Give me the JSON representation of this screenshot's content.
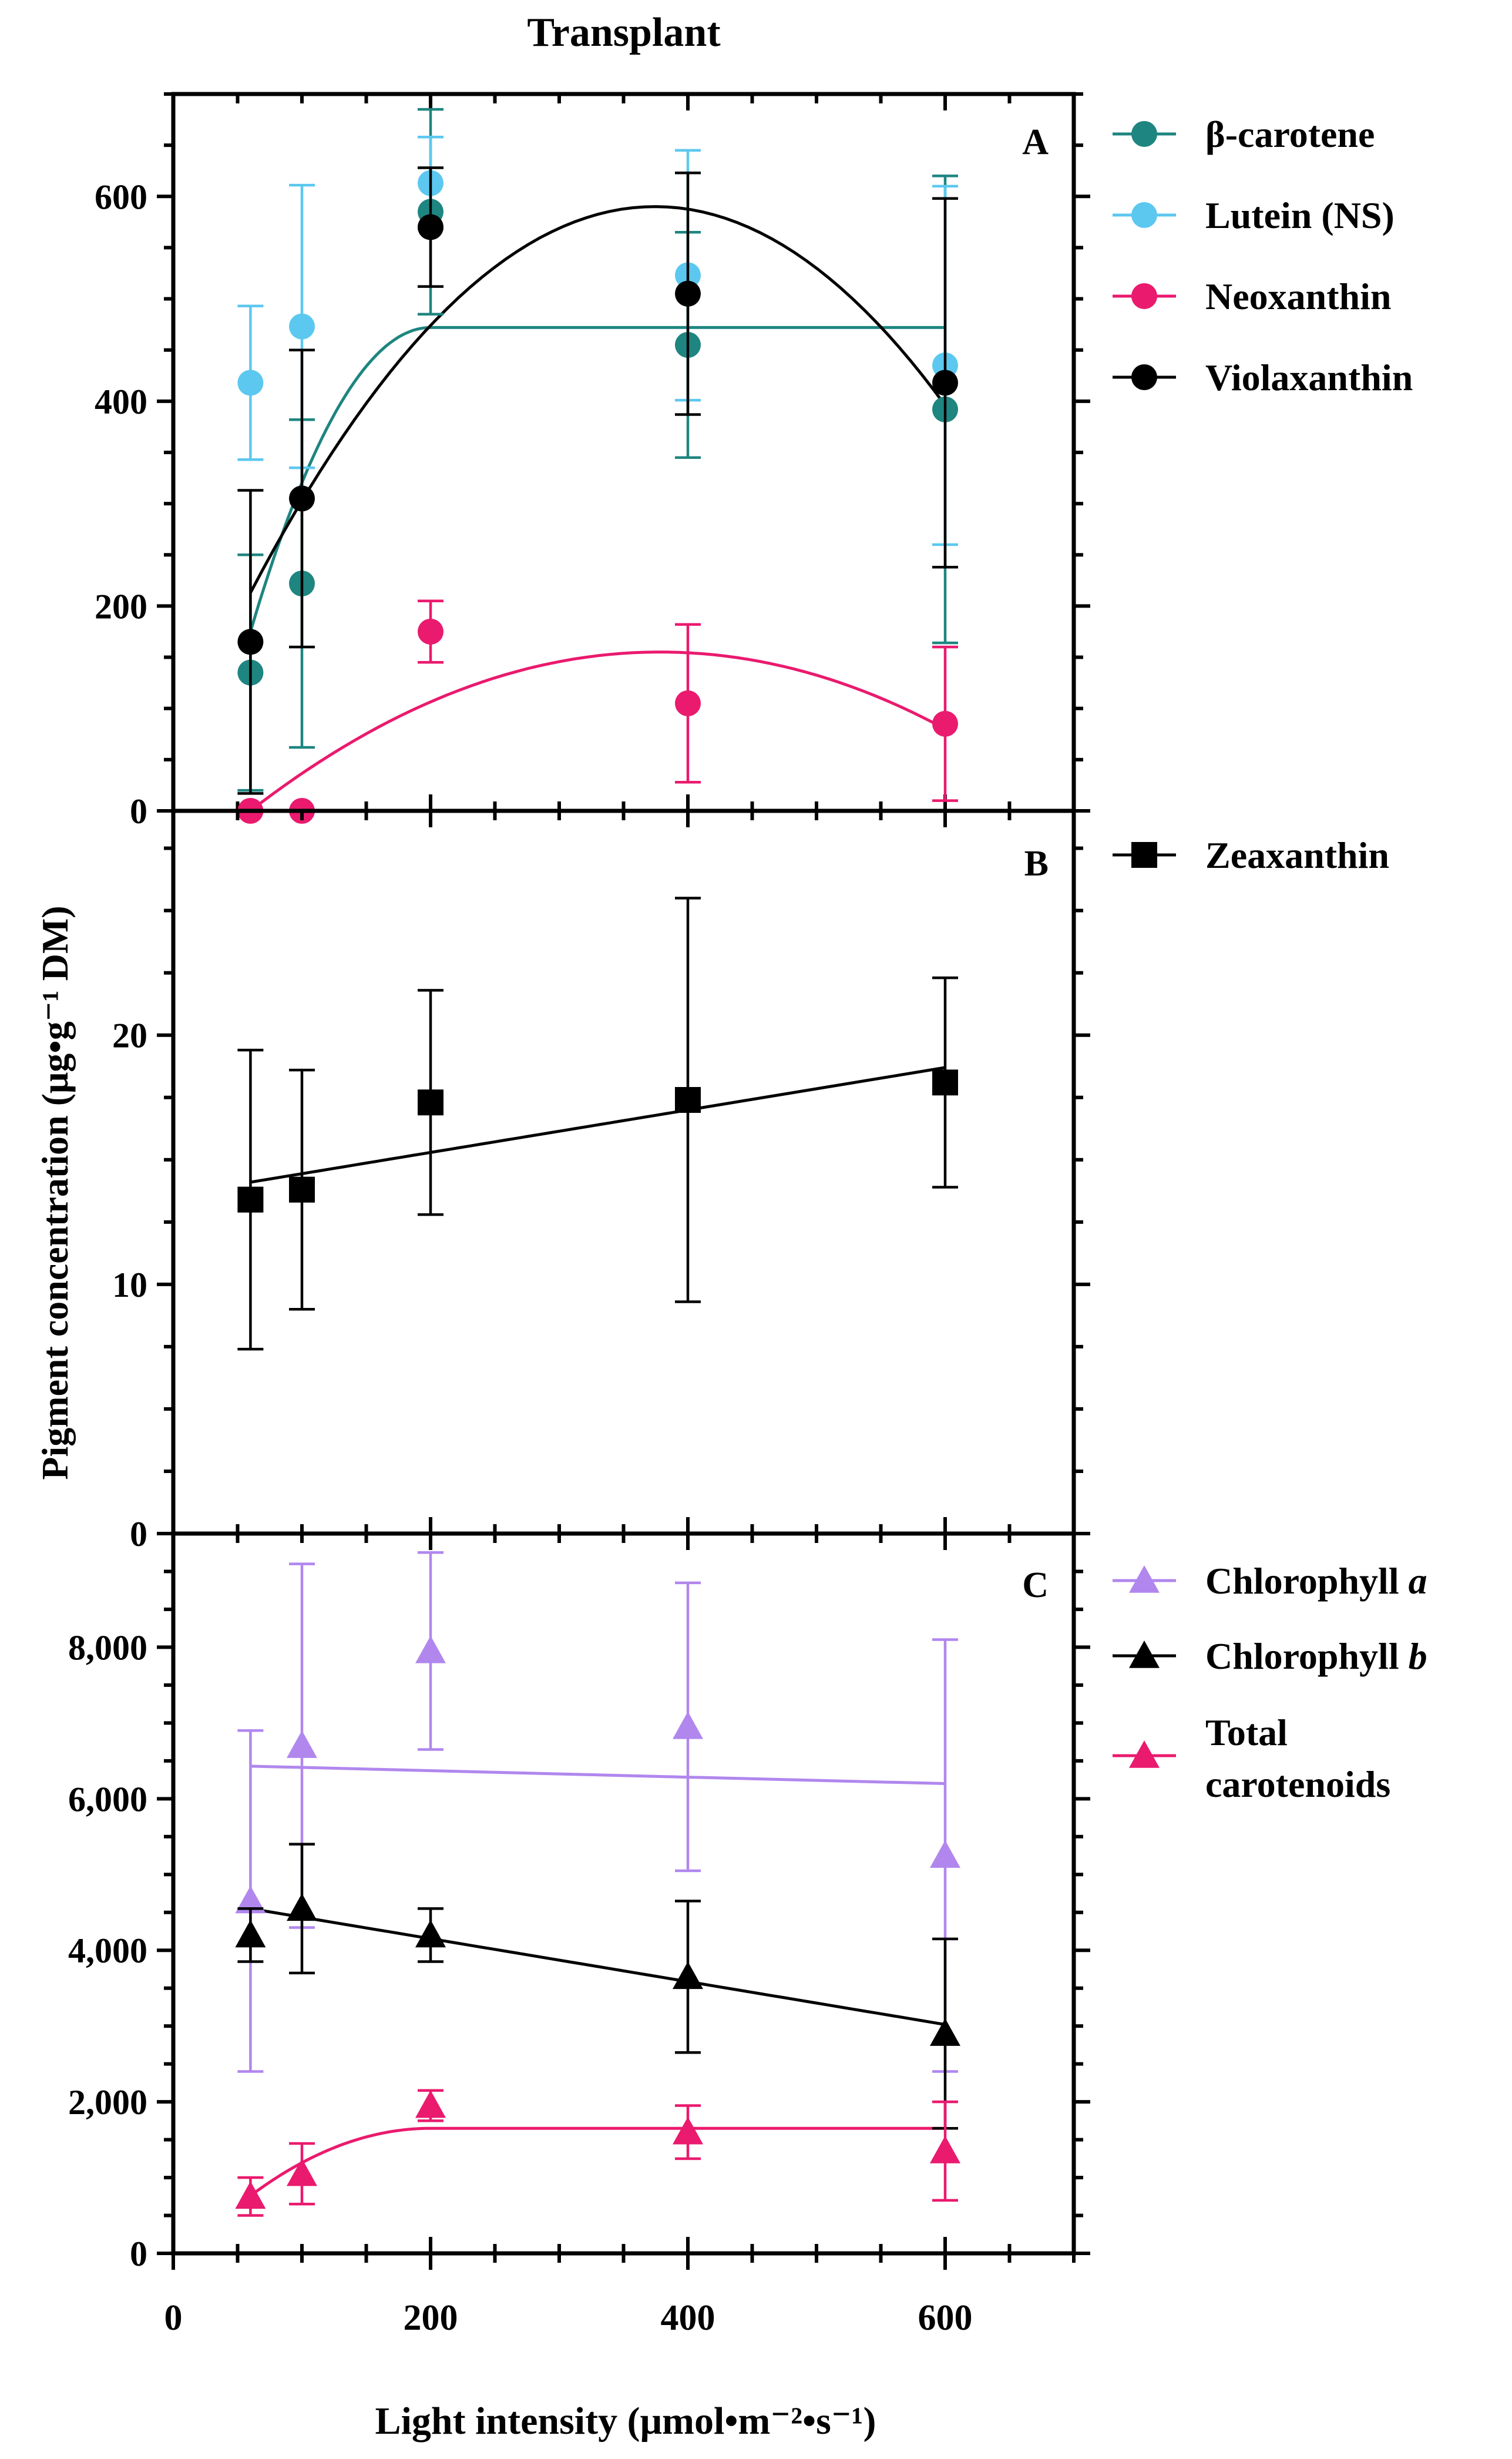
{
  "figure_title": "Transplant",
  "shared_axes": {
    "xlabel": "Light intensity (μmol•m⁻²•s⁻¹)",
    "ylabel": "Pigment concentration (μg•g⁻¹ DM)",
    "xlim": [
      0,
      700
    ],
    "xticks": [
      0,
      200,
      400,
      600
    ],
    "xtick_labels": [
      "0",
      "200",
      "400",
      "600"
    ]
  },
  "colors": {
    "beta_carotene": "#1e8580",
    "lutein": "#5cc8ef",
    "neoxanthin": "#ea1a6e",
    "violaxanthin": "#000000",
    "zeaxanthin": "#000000",
    "chlorophyll_a": "#b187ee",
    "chlorophyll_b": "#000000",
    "total_carotenoids": "#ea1a6e"
  },
  "chart_data": [
    {
      "panel": "A",
      "type": "scatter",
      "ylim": [
        0,
        700
      ],
      "yticks": [
        0,
        200,
        400,
        600
      ],
      "ytick_labels": [
        "0",
        "200",
        "400",
        "600"
      ],
      "x": [
        60,
        100,
        200,
        400,
        600
      ],
      "series": [
        {
          "key": "beta",
          "name": "β-carotene",
          "color": "#1e8580",
          "marker": "circle",
          "values": [
            135,
            222,
            585,
            455,
            392
          ],
          "err": [
            115,
            160,
            100,
            110,
            228
          ],
          "fit": {
            "kind": "plateau",
            "x0": 60,
            "y0": 175,
            "xp": 200,
            "plateau": 472,
            "x1": 600
          }
        },
        {
          "key": "lutein",
          "name": "Lutein (NS)",
          "color": "#5cc8ef",
          "marker": "circle",
          "values": [
            418,
            473,
            613,
            523,
            435
          ],
          "err": [
            75,
            138,
            45,
            122,
            175
          ]
        },
        {
          "key": "neo",
          "name": "Neoxanthin",
          "color": "#ea1a6e",
          "marker": "circle",
          "values": [
            0,
            0,
            175,
            105,
            85
          ],
          "err": [
            0,
            0,
            30,
            77,
            75
          ],
          "fit": {
            "kind": "poly2",
            "from": 60,
            "to": 600,
            "points": [
              [
                60,
                0
              ],
              [
                370,
                155
              ],
              [
                600,
                80
              ]
            ]
          }
        },
        {
          "key": "viola",
          "name": "Violaxanthin",
          "color": "#000000",
          "marker": "circle",
          "values": [
            165,
            305,
            570,
            505,
            418
          ],
          "err": [
            148,
            145,
            58,
            118,
            180
          ],
          "fit": {
            "kind": "poly2",
            "from": 60,
            "to": 600,
            "points": [
              [
                60,
                213
              ],
              [
                370,
                590
              ],
              [
                600,
                396
              ]
            ]
          }
        }
      ]
    },
    {
      "panel": "B",
      "type": "scatter",
      "ylim": [
        0,
        29
      ],
      "yticks": [
        0,
        10,
        20
      ],
      "ytick_labels": [
        "0",
        "10",
        "20"
      ],
      "x": [
        60,
        100,
        200,
        400,
        600
      ],
      "series": [
        {
          "key": "zea",
          "name": "Zeaxanthin",
          "color": "#000000",
          "marker": "square",
          "values": [
            13.4,
            13.8,
            17.3,
            17.4,
            18.1
          ],
          "err": [
            6.0,
            4.8,
            4.5,
            8.1,
            4.2
          ],
          "fit": {
            "kind": "linear",
            "from": 60,
            "to": 600,
            "points": [
              [
                60,
                14.1
              ],
              [
                600,
                18.7
              ]
            ]
          }
        }
      ]
    },
    {
      "panel": "C",
      "type": "scatter",
      "ylim": [
        0,
        9500
      ],
      "yticks": [
        0,
        2000,
        4000,
        6000,
        8000
      ],
      "ytick_labels": [
        "0",
        "2,000",
        "4,000",
        "6,000",
        "8,000"
      ],
      "x": [
        60,
        100,
        200,
        400,
        600
      ],
      "series": [
        {
          "key": "chla",
          "name": "Chlorophyll a",
          "name_main": "Chlorophyll ",
          "name_italic": "a",
          "color": "#b187ee",
          "marker": "triangle",
          "values": [
            4650,
            6700,
            7950,
            6950,
            5250
          ],
          "err": [
            2250,
            2400,
            1300,
            1900,
            2850
          ],
          "fit": {
            "kind": "linear",
            "from": 60,
            "to": 600,
            "points": [
              [
                60,
                6430
              ],
              [
                600,
                6200
              ]
            ]
          }
        },
        {
          "key": "chlb",
          "name": "Chlorophyll b",
          "name_main": "Chlorophyll ",
          "name_italic": "b",
          "color": "#000000",
          "marker": "triangle",
          "values": [
            4200,
            4550,
            4200,
            3650,
            2900
          ],
          "err": [
            350,
            850,
            350,
            1000,
            1250
          ],
          "fit": {
            "kind": "linear",
            "from": 60,
            "to": 600,
            "points": [
              [
                60,
                4550
              ],
              [
                600,
                3020
              ]
            ]
          }
        },
        {
          "key": "car",
          "name": "Total carotenoids",
          "name_line1": "Total",
          "name_line2": "carotenoids",
          "color": "#ea1a6e",
          "marker": "triangle",
          "values": [
            750,
            1050,
            1950,
            1600,
            1350
          ],
          "err": [
            250,
            400,
            200,
            350,
            650
          ],
          "fit": {
            "kind": "plateau",
            "x0": 60,
            "y0": 760,
            "xp": 200,
            "plateau": 1650,
            "x1": 600
          }
        }
      ]
    }
  ]
}
